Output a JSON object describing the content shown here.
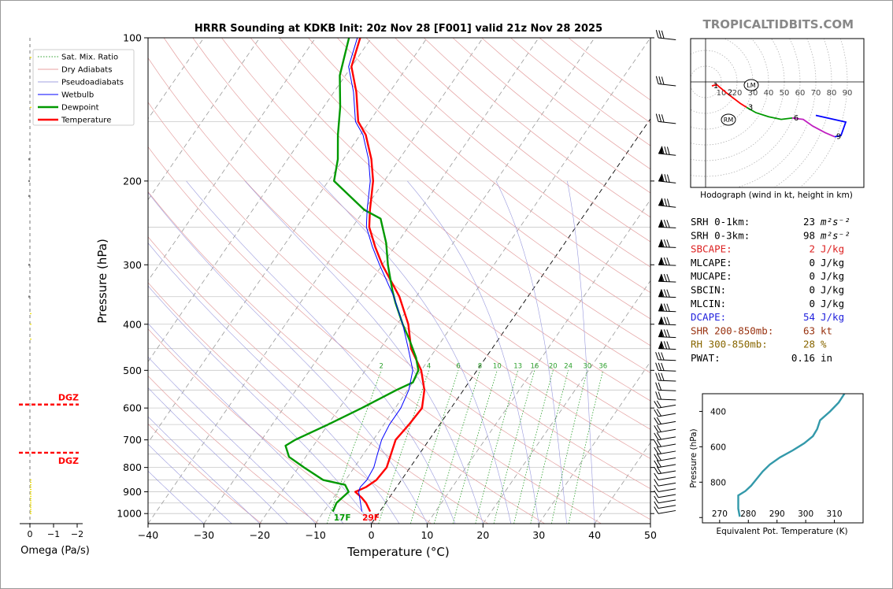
{
  "title": "HRRR Sounding at KDKB Init: 20z Nov 28 [F001] valid 21z Nov 28 2025",
  "watermark": "TROPICALTIDBITS.COM",
  "chart_data": [
    {
      "type": "line",
      "name": "skew-t",
      "xlabel": "Temperature (°C)",
      "ylabel": "Pressure (hPa)",
      "xlim": [
        -40,
        50
      ],
      "ylim": [
        1050,
        100
      ],
      "y_scale": "log",
      "x_ticks": [
        "−40",
        "−30",
        "−20",
        "−10",
        "0",
        "10",
        "20",
        "30",
        "40",
        "50"
      ],
      "x_tick_values": [
        -40,
        -30,
        -20,
        -10,
        0,
        10,
        20,
        30,
        40,
        50
      ],
      "y_ticks": [
        "100",
        "200",
        "300",
        "400",
        "500",
        "600",
        "700",
        "800",
        "900",
        "1000"
      ],
      "y_tick_values": [
        100,
        200,
        300,
        400,
        500,
        600,
        700,
        800,
        900,
        1000
      ],
      "grid": true,
      "legend_position": "top-left",
      "legend": [
        {
          "label": "Sat. Mix. Ratio",
          "color": "#2ca02c",
          "style": "dotted"
        },
        {
          "label": "Dry Adiabats",
          "color": "#e8a0a0",
          "style": "solid"
        },
        {
          "label": "Pseudoadiabats",
          "color": "#a0a0e0",
          "style": "solid"
        },
        {
          "label": "Wetbulb",
          "color": "#0000ff",
          "style": "solid"
        },
        {
          "label": "Dewpoint",
          "color": "#009900",
          "style": "solid"
        },
        {
          "label": "Temperature",
          "color": "#ff0000",
          "style": "solid"
        }
      ],
      "mixing_ratio_labels": [
        "2",
        "4",
        "6",
        "8",
        "10",
        "13",
        "16",
        "20",
        "24",
        "30",
        "36"
      ],
      "mixing_ratio_values": [
        2,
        4,
        6,
        8,
        10,
        13,
        16,
        20,
        24,
        30,
        36
      ],
      "surface_temp_label": "29F",
      "surface_dewpoint_label": "17F",
      "series": [
        {
          "name": "Temperature",
          "color": "#ff0000",
          "p": [
            990,
            950,
            925,
            900,
            880,
            850,
            800,
            700,
            650,
            600,
            550,
            500,
            450,
            400,
            350,
            300,
            275,
            250,
            230,
            200,
            180,
            160,
            150,
            130,
            115,
            100
          ],
          "t": [
            -1.7,
            -3.5,
            -5,
            -6.8,
            -5.5,
            -4.5,
            -4.2,
            -6,
            -5.5,
            -5.2,
            -7,
            -10,
            -14.5,
            -18,
            -23,
            -30,
            -33.5,
            -37,
            -39,
            -42,
            -45,
            -49,
            -52,
            -56,
            -60,
            -62
          ]
        },
        {
          "name": "Dewpoint",
          "color": "#009900",
          "p": [
            990,
            950,
            900,
            870,
            850,
            800,
            760,
            720,
            700,
            650,
            600,
            550,
            530,
            500,
            470,
            430,
            400,
            360,
            340,
            300,
            270,
            240,
            230,
            200,
            180,
            160,
            140,
            120,
            100
          ],
          "t": [
            -8.4,
            -8.8,
            -8,
            -9.5,
            -14,
            -19,
            -23,
            -25,
            -24,
            -20,
            -16,
            -12,
            -10,
            -10.5,
            -12.5,
            -16,
            -19,
            -23,
            -25,
            -29,
            -32,
            -36,
            -40,
            -49,
            -51,
            -54,
            -57,
            -61,
            -64
          ]
        },
        {
          "name": "Wetbulb",
          "color": "#0000ff",
          "p": [
            990,
            950,
            900,
            880,
            850,
            800,
            750,
            700,
            650,
            600,
            550,
            500,
            450,
            400,
            350,
            300,
            275,
            250,
            230,
            200,
            180,
            160,
            150,
            130,
            115,
            100
          ],
          "t": [
            -3.2,
            -4.5,
            -6.2,
            -6.5,
            -6.2,
            -6.5,
            -7.5,
            -8.5,
            -9,
            -9,
            -9.8,
            -11.5,
            -15,
            -19,
            -24,
            -30.5,
            -34,
            -37.5,
            -39.5,
            -42.5,
            -45.5,
            -49.5,
            -52.5,
            -56.5,
            -60.5,
            -62.5
          ]
        }
      ]
    },
    {
      "type": "line",
      "name": "omega",
      "xlabel": "Omega (Pa/s)",
      "x_ticks": [
        "0",
        "−1",
        "−2"
      ],
      "x_tick_values": [
        0,
        -1,
        -2
      ],
      "dgz_label_top": "DGZ",
      "dgz_label_bottom": "DGZ",
      "dgz_p": [
        590,
        745
      ]
    },
    {
      "type": "line",
      "name": "hodograph",
      "caption": "Hodograph (wind in kt, height in km)",
      "ring_labels": [
        "10",
        "20",
        "30",
        "40",
        "50",
        "60",
        "70",
        "80",
        "90"
      ],
      "ring_values": [
        10,
        20,
        30,
        40,
        50,
        60,
        70,
        80,
        90
      ],
      "height_labels": [
        "1",
        "2",
        "3",
        "6",
        "9"
      ],
      "storm_labels": [
        "LM",
        "RM"
      ],
      "segments": [
        {
          "color": "#ff0000",
          "points": [
            [
              4,
              -3
            ],
            [
              7,
              -2
            ],
            [
              13,
              -8
            ],
            [
              22,
              -16
            ],
            [
              26,
              -19
            ]
          ]
        },
        {
          "color": "#009900",
          "points": [
            [
              26,
              -19
            ],
            [
              32,
              -23
            ],
            [
              40,
              -26
            ],
            [
              48,
              -28
            ],
            [
              55,
              -27
            ]
          ]
        },
        {
          "color": "#c020c0",
          "points": [
            [
              55,
              -27
            ],
            [
              62,
              -28
            ],
            [
              68,
              -33
            ],
            [
              76,
              -38
            ],
            [
              82,
              -41
            ]
          ]
        },
        {
          "color": "#0000ff",
          "points": [
            [
              82,
              -41
            ],
            [
              86,
              -40
            ],
            [
              89,
              -30
            ],
            [
              70,
              -25
            ]
          ]
        }
      ]
    },
    {
      "type": "line",
      "name": "theta-e",
      "xlabel": "Equivalent Pot. Temperature (K)",
      "ylabel": "Pressure (hPa)",
      "x_ticks": [
        "270",
        "280",
        "290",
        "300",
        "310"
      ],
      "x_tick_values": [
        270,
        280,
        290,
        300,
        310
      ],
      "y_ticks": [
        "400",
        "600",
        "800"
      ],
      "y_tick_values": [
        400,
        600,
        800
      ],
      "series": [
        {
          "name": "theta-e",
          "color": "#3399aa",
          "p": [
            995,
            950,
            900,
            875,
            850,
            820,
            780,
            740,
            700,
            660,
            620,
            580,
            540,
            500,
            450,
            400,
            350,
            300
          ],
          "theta": [
            277,
            276.5,
            276.5,
            276.5,
            279,
            281,
            283,
            285,
            287.5,
            291,
            295.5,
            299.5,
            302.5,
            304,
            305,
            308.5,
            311.5,
            313.5
          ]
        }
      ]
    }
  ],
  "stats": [
    {
      "label": "SRH 0-1km:",
      "value": "23",
      "unit": "m²s⁻²",
      "color": "#000000"
    },
    {
      "label": "SRH 0-3km:",
      "value": "98",
      "unit": "m²s⁻²",
      "color": "#000000"
    },
    {
      "label": "SBCAPE:",
      "value": "2",
      "unit": "J/kg",
      "color": "#dd2222"
    },
    {
      "label": "MLCAPE:",
      "value": "0",
      "unit": "J/kg",
      "color": "#000000"
    },
    {
      "label": "MUCAPE:",
      "value": "0",
      "unit": "J/kg",
      "color": "#000000"
    },
    {
      "label": "SBCIN:",
      "value": "0",
      "unit": "J/kg",
      "color": "#000000"
    },
    {
      "label": "MLCIN:",
      "value": "0",
      "unit": "J/kg",
      "color": "#000000"
    },
    {
      "label": "DCAPE:",
      "value": "54",
      "unit": "J/kg",
      "color": "#2222dd"
    },
    {
      "label": "SHR 200-850mb:",
      "value": "63",
      "unit": "kt",
      "color": "#993311"
    },
    {
      "label": "RH 300-850mb:",
      "value": "28",
      "unit": "%",
      "color": "#886600"
    },
    {
      "label": "PWAT:",
      "value": "0.16",
      "unit": "in",
      "color": "#000000"
    }
  ]
}
